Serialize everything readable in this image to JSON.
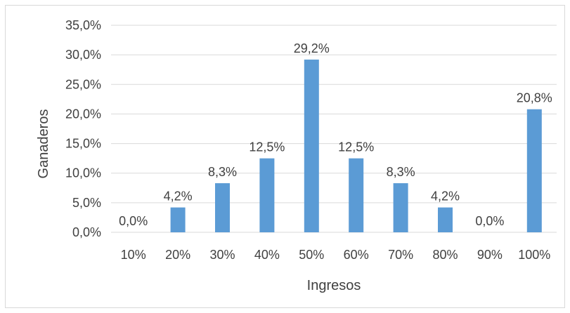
{
  "chart_data": {
    "type": "bar",
    "title": "",
    "xlabel": "Ingresos",
    "ylabel": "Ganaderos",
    "categories": [
      "10%",
      "20%",
      "30%",
      "40%",
      "50%",
      "60%",
      "70%",
      "80%",
      "90%",
      "100%"
    ],
    "values": [
      0.0,
      4.2,
      8.3,
      12.5,
      29.2,
      12.5,
      8.3,
      4.2,
      0.0,
      20.8
    ],
    "value_labels": [
      "0,0%",
      "4,2%",
      "8,3%",
      "12,5%",
      "29,2%",
      "12,5%",
      "8,3%",
      "4,2%",
      "0,0%",
      "20,8%"
    ],
    "ylim": [
      0,
      35
    ],
    "yticks": [
      0,
      5,
      10,
      15,
      20,
      25,
      30,
      35
    ],
    "ytick_labels": [
      "0,0%",
      "5,0%",
      "10,0%",
      "15,0%",
      "20,0%",
      "25,0%",
      "30,0%",
      "35,0%"
    ],
    "grid": true,
    "legend": "none",
    "colors": {
      "bar": "#5b9bd5",
      "grid": "#d9d9d9",
      "text": "#404040"
    }
  }
}
